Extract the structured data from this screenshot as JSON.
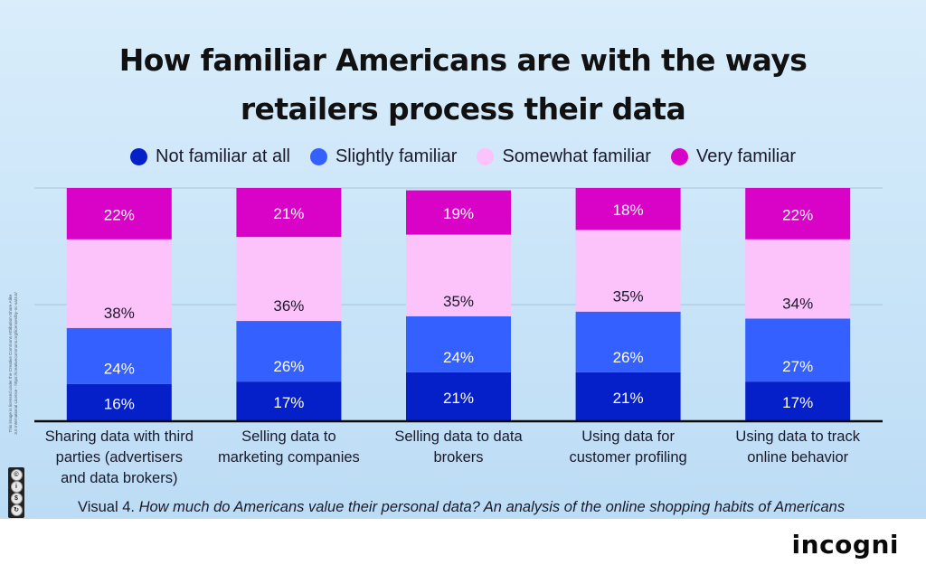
{
  "colors": {
    "not_familiar": "#0520c8",
    "slightly": "#3360ff",
    "somewhat": "#fcc2fa",
    "very": "#d903c8",
    "label_light": "#ffffff",
    "label_dark": "#1a1a2a",
    "baseline": "#0a0a0a",
    "grid": "#a9c4dd"
  },
  "chart_data": {
    "type": "bar",
    "stacked": true,
    "title": "How familiar Americans are with the ways retailers process their data",
    "title_lines": [
      "How familiar Americans are with the ways",
      "retailers process their data"
    ],
    "xlabel": "",
    "ylabel": "",
    "ylim": [
      0,
      100
    ],
    "grid": true,
    "gridlines": [
      50,
      100
    ],
    "legend_position": "top-center",
    "categories": [
      [
        "Sharing data with third",
        "parties (advertisers",
        "and data brokers)"
      ],
      [
        "Selling data to",
        "marketing companies"
      ],
      [
        "Selling data to data",
        "brokers"
      ],
      [
        "Using data for",
        "customer profiling"
      ],
      [
        "Using data to track",
        "online behavior"
      ]
    ],
    "series": [
      {
        "name": "Not familiar at all",
        "color_key": "not_familiar",
        "label_color_key": "label_light",
        "values": [
          16,
          17,
          21,
          21,
          17
        ]
      },
      {
        "name": "Slightly familiar",
        "color_key": "slightly",
        "label_color_key": "label_light",
        "values": [
          24,
          26,
          24,
          26,
          27
        ]
      },
      {
        "name": "Somewhat familiar",
        "color_key": "somewhat",
        "label_color_key": "label_dark",
        "values": [
          38,
          36,
          35,
          35,
          34
        ]
      },
      {
        "name": "Very familiar",
        "color_key": "very",
        "label_color_key": "label_light",
        "values": [
          22,
          21,
          19,
          18,
          22
        ]
      }
    ],
    "value_suffix": "%"
  },
  "legend": {
    "items": [
      "Not familiar at all",
      "Slightly familiar",
      "Somewhat familiar",
      "Very familiar"
    ]
  },
  "caption": {
    "prefix": "Visual 4. ",
    "italic": "How much do Americans value their personal data? An analysis of the online shopping habits of Americans"
  },
  "license": {
    "text_line1": "This image is licensed under the Creative Commons Attribution-Share Alike",
    "text_line2": "3.0 International License - https://creativecommons.org/licenses/by-nc-sa/3.0/",
    "badge": [
      "cc",
      "BY",
      "NC",
      "SA"
    ]
  },
  "brand": "incogni"
}
